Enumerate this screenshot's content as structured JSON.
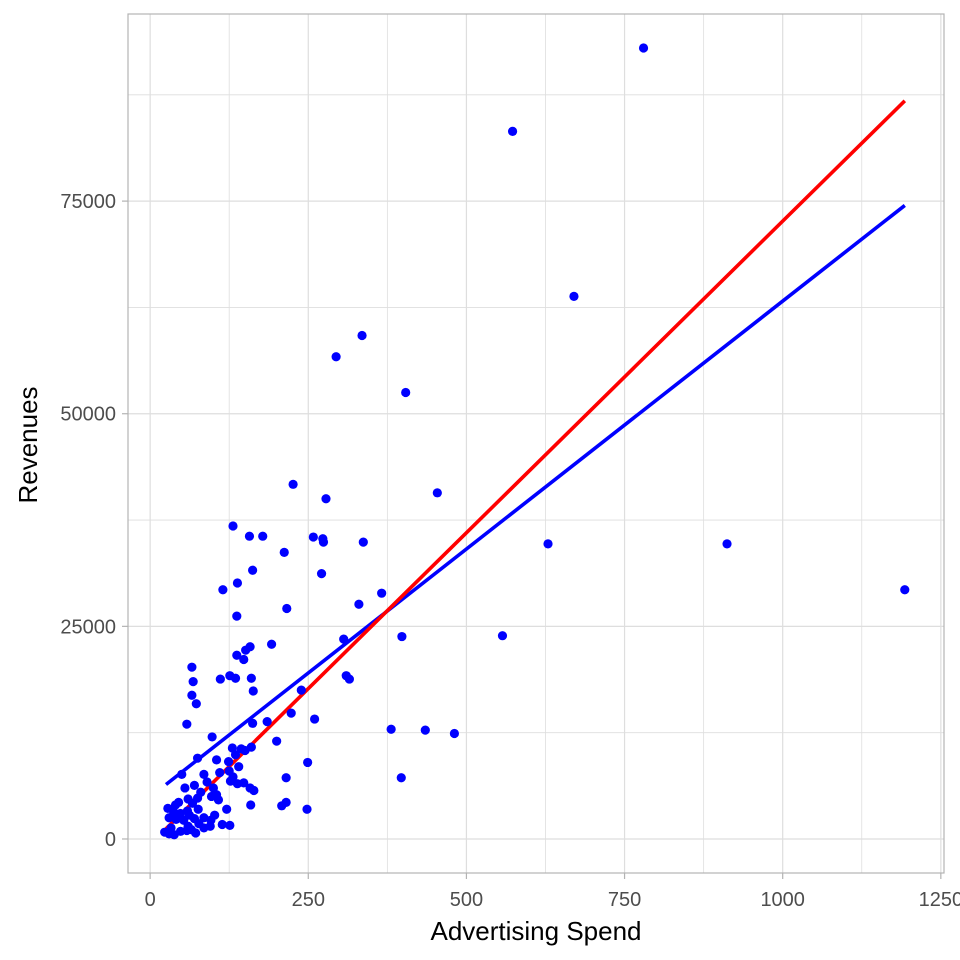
{
  "chart_data": {
    "type": "scatter",
    "title": "",
    "xlabel": "Advertising Spend",
    "ylabel": "Revenues",
    "xlim": [
      -35,
      1255
    ],
    "ylim": [
      -4000,
      97000
    ],
    "x_ticks": [
      0,
      250,
      500,
      750,
      1000,
      1250
    ],
    "x_tick_labels": [
      "0",
      "250",
      "500",
      "750",
      "1000",
      "1250"
    ],
    "y_ticks": [
      0,
      25000,
      50000,
      75000
    ],
    "y_tick_labels": [
      "0",
      "25000",
      "50000",
      "75000"
    ],
    "x_minor_grid": [
      125,
      375,
      625,
      875,
      1125
    ],
    "y_minor_grid": [
      12500,
      37500,
      62500,
      87500
    ],
    "grid": true,
    "legend": "none",
    "colors": {
      "points": "#0000ff",
      "fit_blue": "#0000ff",
      "fit_red": "#ff0000",
      "grid": "#dedede",
      "border": "#b3b3b3"
    },
    "points": [
      [
        780,
        93000
      ],
      [
        573,
        83200
      ],
      [
        670,
        63800
      ],
      [
        335,
        59200
      ],
      [
        294,
        56700
      ],
      [
        404,
        52500
      ],
      [
        226,
        41700
      ],
      [
        454,
        40700
      ],
      [
        278,
        40000
      ],
      [
        131,
        36800
      ],
      [
        157,
        35600
      ],
      [
        178,
        35600
      ],
      [
        258,
        35500
      ],
      [
        273,
        35300
      ],
      [
        274,
        34900
      ],
      [
        337,
        34900
      ],
      [
        629,
        34700
      ],
      [
        912,
        34700
      ],
      [
        212,
        33700
      ],
      [
        162,
        31600
      ],
      [
        271,
        31200
      ],
      [
        138,
        30100
      ],
      [
        115,
        29300
      ],
      [
        366,
        28900
      ],
      [
        1193,
        29300
      ],
      [
        330,
        27600
      ],
      [
        216,
        27100
      ],
      [
        137,
        26200
      ],
      [
        306,
        23500
      ],
      [
        398,
        23800
      ],
      [
        557,
        23900
      ],
      [
        192,
        22900
      ],
      [
        158,
        22600
      ],
      [
        151,
        22200
      ],
      [
        137,
        21600
      ],
      [
        148,
        21100
      ],
      [
        66,
        20200
      ],
      [
        126,
        19200
      ],
      [
        111,
        18800
      ],
      [
        68,
        18500
      ],
      [
        160,
        18900
      ],
      [
        135,
        18900
      ],
      [
        310,
        19200
      ],
      [
        315,
        18800
      ],
      [
        66,
        16900
      ],
      [
        163,
        17400
      ],
      [
        239,
        17500
      ],
      [
        73,
        15900
      ],
      [
        223,
        14800
      ],
      [
        260,
        14100
      ],
      [
        185,
        13800
      ],
      [
        58,
        13500
      ],
      [
        162,
        13600
      ],
      [
        381,
        12900
      ],
      [
        435,
        12800
      ],
      [
        481,
        12400
      ],
      [
        98,
        12000
      ],
      [
        200,
        11500
      ],
      [
        130,
        10700
      ],
      [
        144,
        10600
      ],
      [
        160,
        10800
      ],
      [
        135,
        9900
      ],
      [
        150,
        10400
      ],
      [
        105,
        9300
      ],
      [
        75,
        9500
      ],
      [
        124,
        9100
      ],
      [
        249,
        9000
      ],
      [
        140,
        8500
      ],
      [
        125,
        8000
      ],
      [
        110,
        7800
      ],
      [
        50,
        7600
      ],
      [
        85,
        7600
      ],
      [
        131,
        7300
      ],
      [
        397,
        7200
      ],
      [
        215,
        7200
      ],
      [
        90,
        6700
      ],
      [
        148,
        6600
      ],
      [
        158,
        6000
      ],
      [
        127,
        6800
      ],
      [
        138,
        6500
      ],
      [
        164,
        5700
      ],
      [
        55,
        6000
      ],
      [
        70,
        6300
      ],
      [
        100,
        6000
      ],
      [
        80,
        5500
      ],
      [
        97,
        5000
      ],
      [
        105,
        5200
      ],
      [
        75,
        4800
      ],
      [
        60,
        4700
      ],
      [
        45,
        4300
      ],
      [
        40,
        4000
      ],
      [
        67,
        4200
      ],
      [
        108,
        4600
      ],
      [
        159,
        4000
      ],
      [
        121,
        3500
      ],
      [
        215,
        4300
      ],
      [
        248,
        3500
      ],
      [
        208,
        3900
      ],
      [
        28,
        3600
      ],
      [
        37,
        3200
      ],
      [
        48,
        3000
      ],
      [
        59,
        3300
      ],
      [
        62,
        2800
      ],
      [
        76,
        3500
      ],
      [
        85,
        2500
      ],
      [
        30,
        2500
      ],
      [
        41,
        2300
      ],
      [
        53,
        2200
      ],
      [
        70,
        2400
      ],
      [
        96,
        2200
      ],
      [
        102,
        2800
      ],
      [
        60,
        1500
      ],
      [
        65,
        1100
      ],
      [
        77,
        1800
      ],
      [
        85,
        1300
      ],
      [
        95,
        1500
      ],
      [
        114,
        1700
      ],
      [
        126,
        1600
      ],
      [
        33,
        1300
      ],
      [
        23,
        800
      ],
      [
        30,
        600
      ],
      [
        38,
        500
      ],
      [
        48,
        900
      ],
      [
        58,
        1000
      ],
      [
        72,
        700
      ]
    ],
    "series": [
      {
        "color": "#0000ff",
        "x": [
          25,
          1193
        ],
        "y": [
          6400,
          74500
        ]
      },
      {
        "color": "#ff0000",
        "x": [
          25,
          1193
        ],
        "y": [
          1200,
          86800
        ]
      }
    ]
  }
}
